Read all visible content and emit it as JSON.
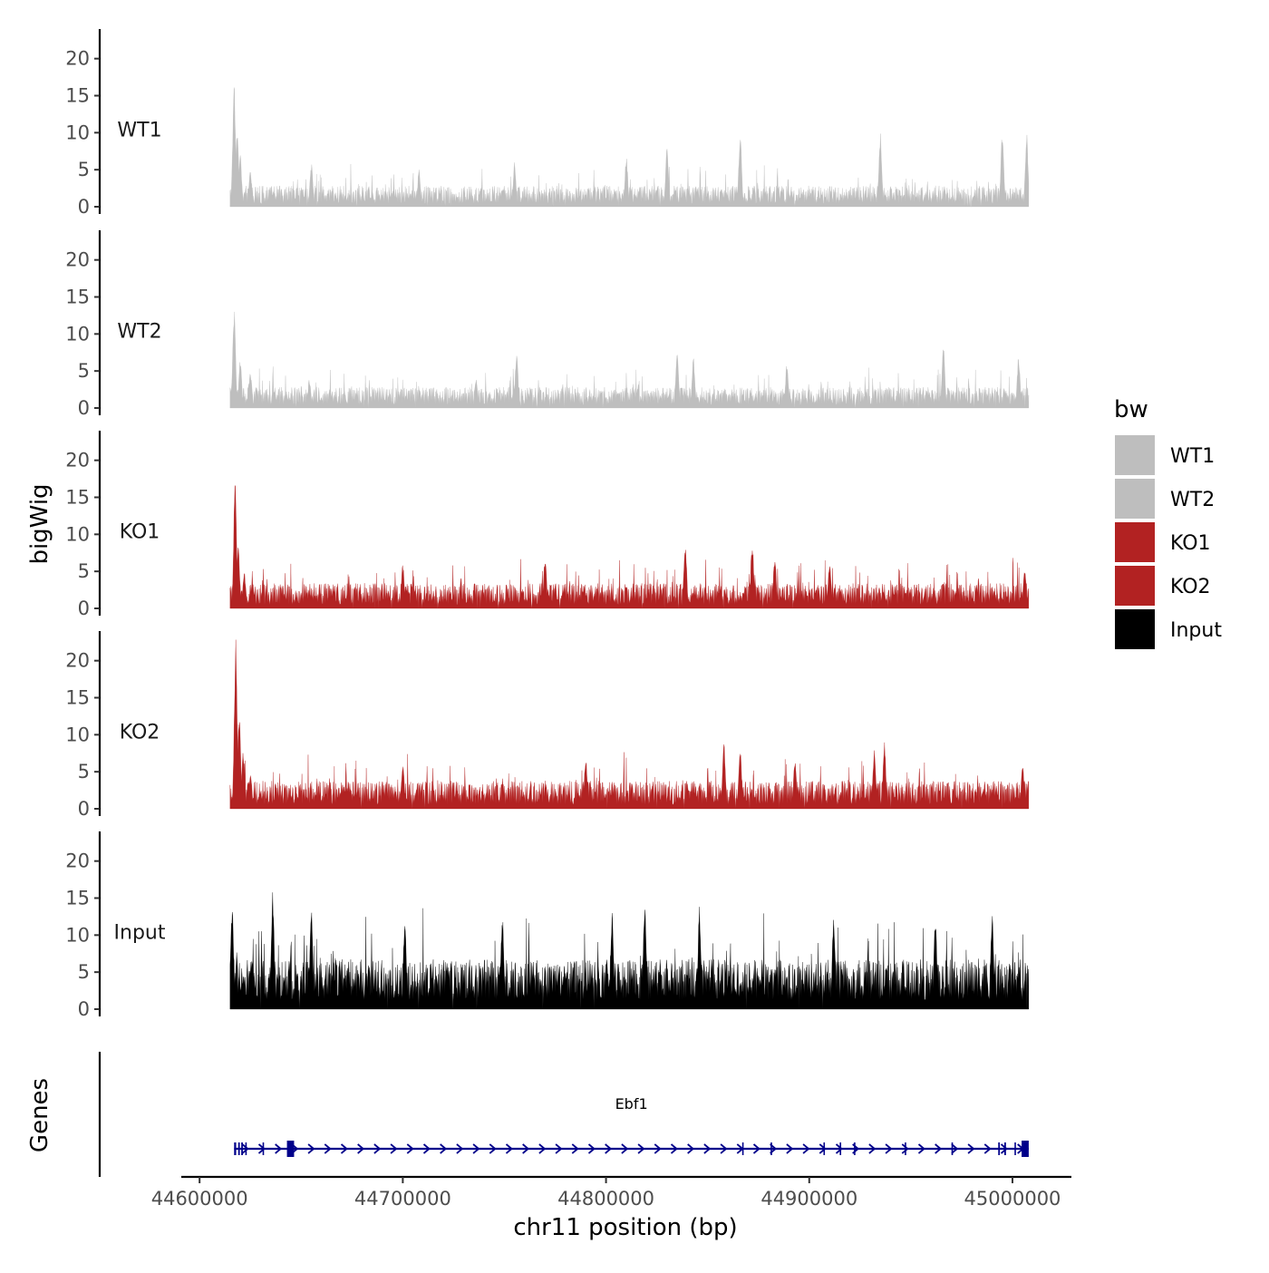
{
  "chart_data": {
    "type": "area",
    "ylabel_tracks": "bigWig",
    "ylabel_genes": "Genes",
    "xlabel": "chr11 position (bp)",
    "y_range": [
      0,
      24
    ],
    "y_ticks": [
      0,
      5,
      10,
      15,
      20
    ],
    "y_tick_labels": [
      "0",
      "5",
      "10",
      "15",
      "20"
    ],
    "x_range": [
      44591000,
      45029000
    ],
    "x_ticks": [
      44600000,
      44700000,
      44800000,
      44900000,
      45000000
    ],
    "x_tick_labels": [
      "44600000",
      "44700000",
      "44800000",
      "44900000",
      "45000000"
    ],
    "data_range": [
      44615000,
      45008000
    ],
    "tracks": [
      {
        "name": "WT1",
        "color": "#BEBEBE",
        "base": 1.2,
        "noise": 2.4,
        "peaks": [
          [
            44617000,
            16.5
          ],
          [
            44618500,
            10.5
          ],
          [
            44620000,
            7
          ],
          [
            44625000,
            5
          ],
          [
            44655000,
            6
          ],
          [
            44708000,
            5
          ],
          [
            44755000,
            6
          ],
          [
            44810000,
            7
          ],
          [
            44830000,
            8
          ],
          [
            44866000,
            10
          ],
          [
            44935000,
            10
          ],
          [
            44995000,
            10.5
          ],
          [
            45007000,
            10
          ]
        ]
      },
      {
        "name": "WT2",
        "color": "#BEBEBE",
        "base": 1.2,
        "noise": 2.4,
        "peaks": [
          [
            44617000,
            13.5
          ],
          [
            44620000,
            6.5
          ],
          [
            44625000,
            5
          ],
          [
            44654000,
            4
          ],
          [
            44736000,
            4
          ],
          [
            44756000,
            7.5
          ],
          [
            44835000,
            8
          ],
          [
            44843000,
            7
          ],
          [
            44889000,
            6
          ],
          [
            44966000,
            9
          ],
          [
            45003000,
            7
          ]
        ]
      },
      {
        "name": "KO1",
        "color": "#B22222",
        "base": 1.4,
        "noise": 2.9,
        "peaks": [
          [
            44617500,
            17
          ],
          [
            44619000,
            9
          ],
          [
            44622000,
            5
          ],
          [
            44626000,
            4
          ],
          [
            44700000,
            6
          ],
          [
            44770000,
            7
          ],
          [
            44839000,
            9
          ],
          [
            44872000,
            9
          ],
          [
            44883000,
            7
          ],
          [
            44910000,
            6.5
          ],
          [
            45006000,
            5.5
          ]
        ]
      },
      {
        "name": "KO2",
        "color": "#B22222",
        "base": 1.6,
        "noise": 3.2,
        "peaks": [
          [
            44617800,
            23
          ],
          [
            44619500,
            13
          ],
          [
            44621500,
            8
          ],
          [
            44625000,
            5
          ],
          [
            44700000,
            6.5
          ],
          [
            44790000,
            7
          ],
          [
            44858000,
            9
          ],
          [
            44866000,
            8
          ],
          [
            44893000,
            7
          ],
          [
            44932000,
            8
          ],
          [
            44937000,
            9
          ],
          [
            45005000,
            6
          ]
        ]
      },
      {
        "name": "Input",
        "color": "#000000",
        "base": 3.5,
        "noise": 5.5,
        "peaks": [
          [
            44616000,
            14.5
          ],
          [
            44636000,
            16
          ],
          [
            44655000,
            14
          ],
          [
            44701000,
            13
          ],
          [
            44749000,
            13
          ],
          [
            44803000,
            13
          ],
          [
            44819000,
            15
          ],
          [
            44846000,
            14
          ],
          [
            44912000,
            13
          ],
          [
            44962000,
            13
          ],
          [
            44990000,
            13
          ]
        ]
      }
    ],
    "legend": {
      "title": "bw",
      "entries": [
        {
          "label": "WT1",
          "color": "#BEBEBE"
        },
        {
          "label": "WT2",
          "color": "#BEBEBE"
        },
        {
          "label": "KO1",
          "color": "#B22222"
        },
        {
          "label": "KO2",
          "color": "#B22222"
        },
        {
          "label": "Input",
          "color": "#000000"
        }
      ],
      "position": "right"
    },
    "gene": {
      "name": "Ebf1",
      "color": "#00008B",
      "strand": "+",
      "start": 44617000,
      "end": 45008000,
      "exons": [
        [
          44617000,
          44618000
        ],
        [
          44619000,
          44619800
        ],
        [
          44620500,
          44621300
        ],
        [
          44622500,
          44623200
        ],
        [
          44631000,
          44631600
        ],
        [
          44643000,
          44646500
        ],
        [
          44867000,
          44867500
        ],
        [
          44881000,
          44881500
        ],
        [
          44907000,
          44907500
        ],
        [
          44915000,
          44915500
        ],
        [
          44922000,
          44922500
        ],
        [
          44947000,
          44947500
        ],
        [
          44970000,
          44970500
        ],
        [
          44993000,
          44993800
        ],
        [
          44996000,
          44996800
        ],
        [
          45001000,
          45001600
        ],
        [
          45004500,
          45008000
        ]
      ]
    }
  }
}
